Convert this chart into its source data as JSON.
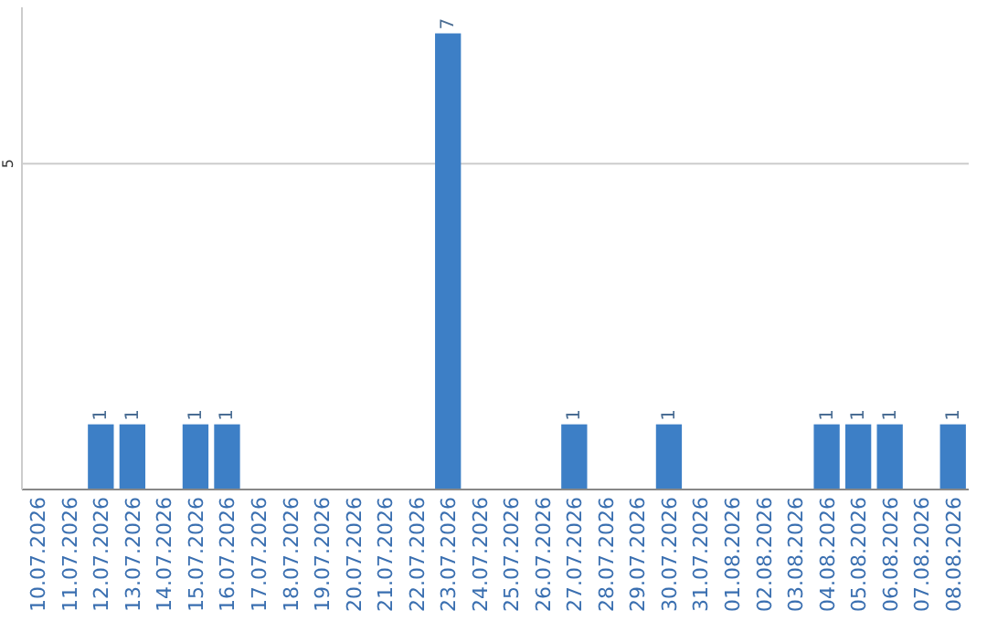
{
  "chart_data": {
    "type": "bar",
    "categories": [
      "10.07.2026",
      "11.07.2026",
      "12.07.2026",
      "13.07.2026",
      "14.07.2026",
      "15.07.2026",
      "16.07.2026",
      "17.07.2026",
      "18.07.2026",
      "19.07.2026",
      "20.07.2026",
      "21.07.2026",
      "22.07.2026",
      "23.07.2026",
      "24.07.2026",
      "25.07.2026",
      "26.07.2026",
      "27.07.2026",
      "28.07.2026",
      "29.07.2026",
      "30.07.2026",
      "31.07.2026",
      "01.08.2026",
      "02.08.2026",
      "03.08.2026",
      "04.08.2026",
      "05.08.2026",
      "06.08.2026",
      "07.08.2026",
      "08.08.2026"
    ],
    "values": [
      0,
      0,
      1,
      1,
      0,
      1,
      1,
      0,
      0,
      0,
      0,
      0,
      0,
      7,
      0,
      0,
      0,
      1,
      0,
      0,
      1,
      0,
      0,
      0,
      0,
      1,
      1,
      1,
      0,
      1
    ],
    "value_labels": [
      null,
      null,
      "1",
      "1",
      null,
      "1",
      "1",
      null,
      null,
      null,
      null,
      null,
      null,
      "7",
      null,
      null,
      null,
      "1",
      null,
      null,
      "1",
      null,
      null,
      null,
      null,
      "1",
      "1",
      "1",
      null,
      "1"
    ],
    "color": "#3d7fc6",
    "ylim": [
      0,
      7.4
    ],
    "yticks": [
      5
    ],
    "grid": "y"
  }
}
